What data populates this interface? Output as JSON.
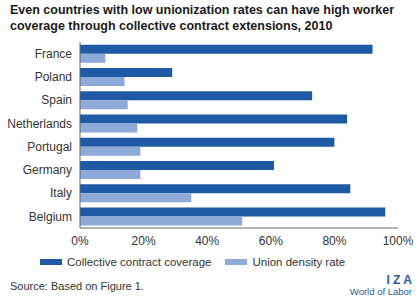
{
  "chart_data": {
    "type": "bar",
    "orientation": "horizontal",
    "title": "Even countries with low unionization rates can have high worker coverage through collective contract extensions, 2010",
    "categories": [
      "France",
      "Poland",
      "Spain",
      "Netherlands",
      "Portugal",
      "Germany",
      "Italy",
      "Belgium"
    ],
    "series": [
      {
        "name": "Collective contract coverage",
        "color": "#1f5aa6",
        "values": [
          92,
          29,
          73,
          84,
          80,
          61,
          85,
          96
        ]
      },
      {
        "name": "Union density rate",
        "color": "#8eaad8",
        "values": [
          8,
          14,
          15,
          18,
          19,
          19,
          35,
          51
        ]
      }
    ],
    "xlim": [
      0,
      100
    ],
    "xticks": [
      {
        "value": 0,
        "label": "0%"
      },
      {
        "value": 20,
        "label": "20%"
      },
      {
        "value": 40,
        "label": "40%"
      },
      {
        "value": 60,
        "label": "60%"
      },
      {
        "value": 80,
        "label": "80%"
      },
      {
        "value": 100,
        "label": "100%"
      }
    ],
    "grid": false,
    "source": "Source: Based on Figure 1.",
    "logo": [
      "I Z A",
      "World of Labor"
    ]
  }
}
